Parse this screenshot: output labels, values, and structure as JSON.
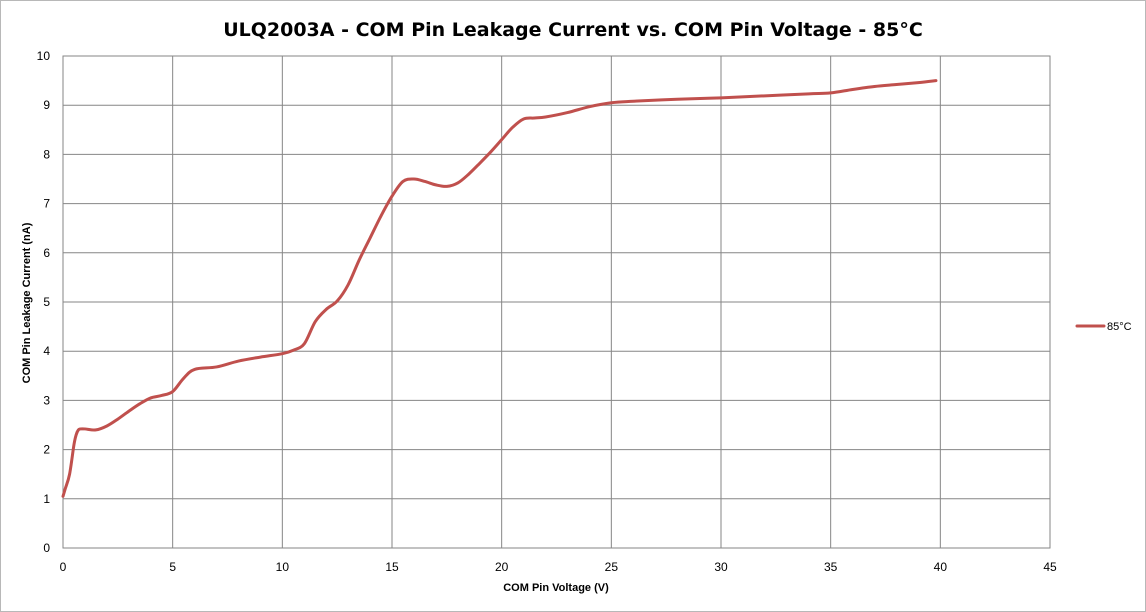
{
  "chart_data": {
    "type": "line",
    "title": "ULQ2003A - COM Pin Leakage Current vs. COM Pin Voltage - 85°C",
    "xlabel": "COM Pin Voltage (V)",
    "ylabel": "COM Pin Leakage Current (nA)",
    "xlim": [
      0,
      45
    ],
    "ylim": [
      0,
      10
    ],
    "xticks": [
      0,
      5,
      10,
      15,
      20,
      25,
      30,
      35,
      40,
      45
    ],
    "yticks": [
      0,
      1,
      2,
      3,
      4,
      5,
      6,
      7,
      8,
      9,
      10
    ],
    "grid": true,
    "legend_position": "right",
    "series": [
      {
        "name": "85°C",
        "color": "#c0504d",
        "x": [
          0,
          0.1,
          0.3,
          0.5,
          0.6,
          0.7,
          0.8,
          1.0,
          1.5,
          2.0,
          2.5,
          3.0,
          3.5,
          4.0,
          4.5,
          5.0,
          5.5,
          6.0,
          7.0,
          8.0,
          9.0,
          10.0,
          10.5,
          11.0,
          11.5,
          12.0,
          12.5,
          13.0,
          13.5,
          14.0,
          14.5,
          15.0,
          15.5,
          16.0,
          16.5,
          17.0,
          17.5,
          18.0,
          18.5,
          19.0,
          19.5,
          20.0,
          20.5,
          21.0,
          21.5,
          22.0,
          23.0,
          24.0,
          25.0,
          26.0,
          28.0,
          30.0,
          32.0,
          34.0,
          35.0,
          36.0,
          37.0,
          38.0,
          39.0,
          39.8
        ],
        "y": [
          1.05,
          1.2,
          1.5,
          2.1,
          2.3,
          2.4,
          2.42,
          2.42,
          2.4,
          2.48,
          2.62,
          2.78,
          2.93,
          3.05,
          3.1,
          3.18,
          3.45,
          3.63,
          3.68,
          3.8,
          3.88,
          3.95,
          4.02,
          4.15,
          4.6,
          4.85,
          5.02,
          5.35,
          5.85,
          6.3,
          6.75,
          7.15,
          7.45,
          7.5,
          7.45,
          7.38,
          7.35,
          7.42,
          7.6,
          7.82,
          8.05,
          8.3,
          8.55,
          8.72,
          8.74,
          8.76,
          8.85,
          8.97,
          9.05,
          9.08,
          9.12,
          9.15,
          9.19,
          9.23,
          9.25,
          9.32,
          9.38,
          9.42,
          9.46,
          9.5
        ]
      }
    ]
  }
}
